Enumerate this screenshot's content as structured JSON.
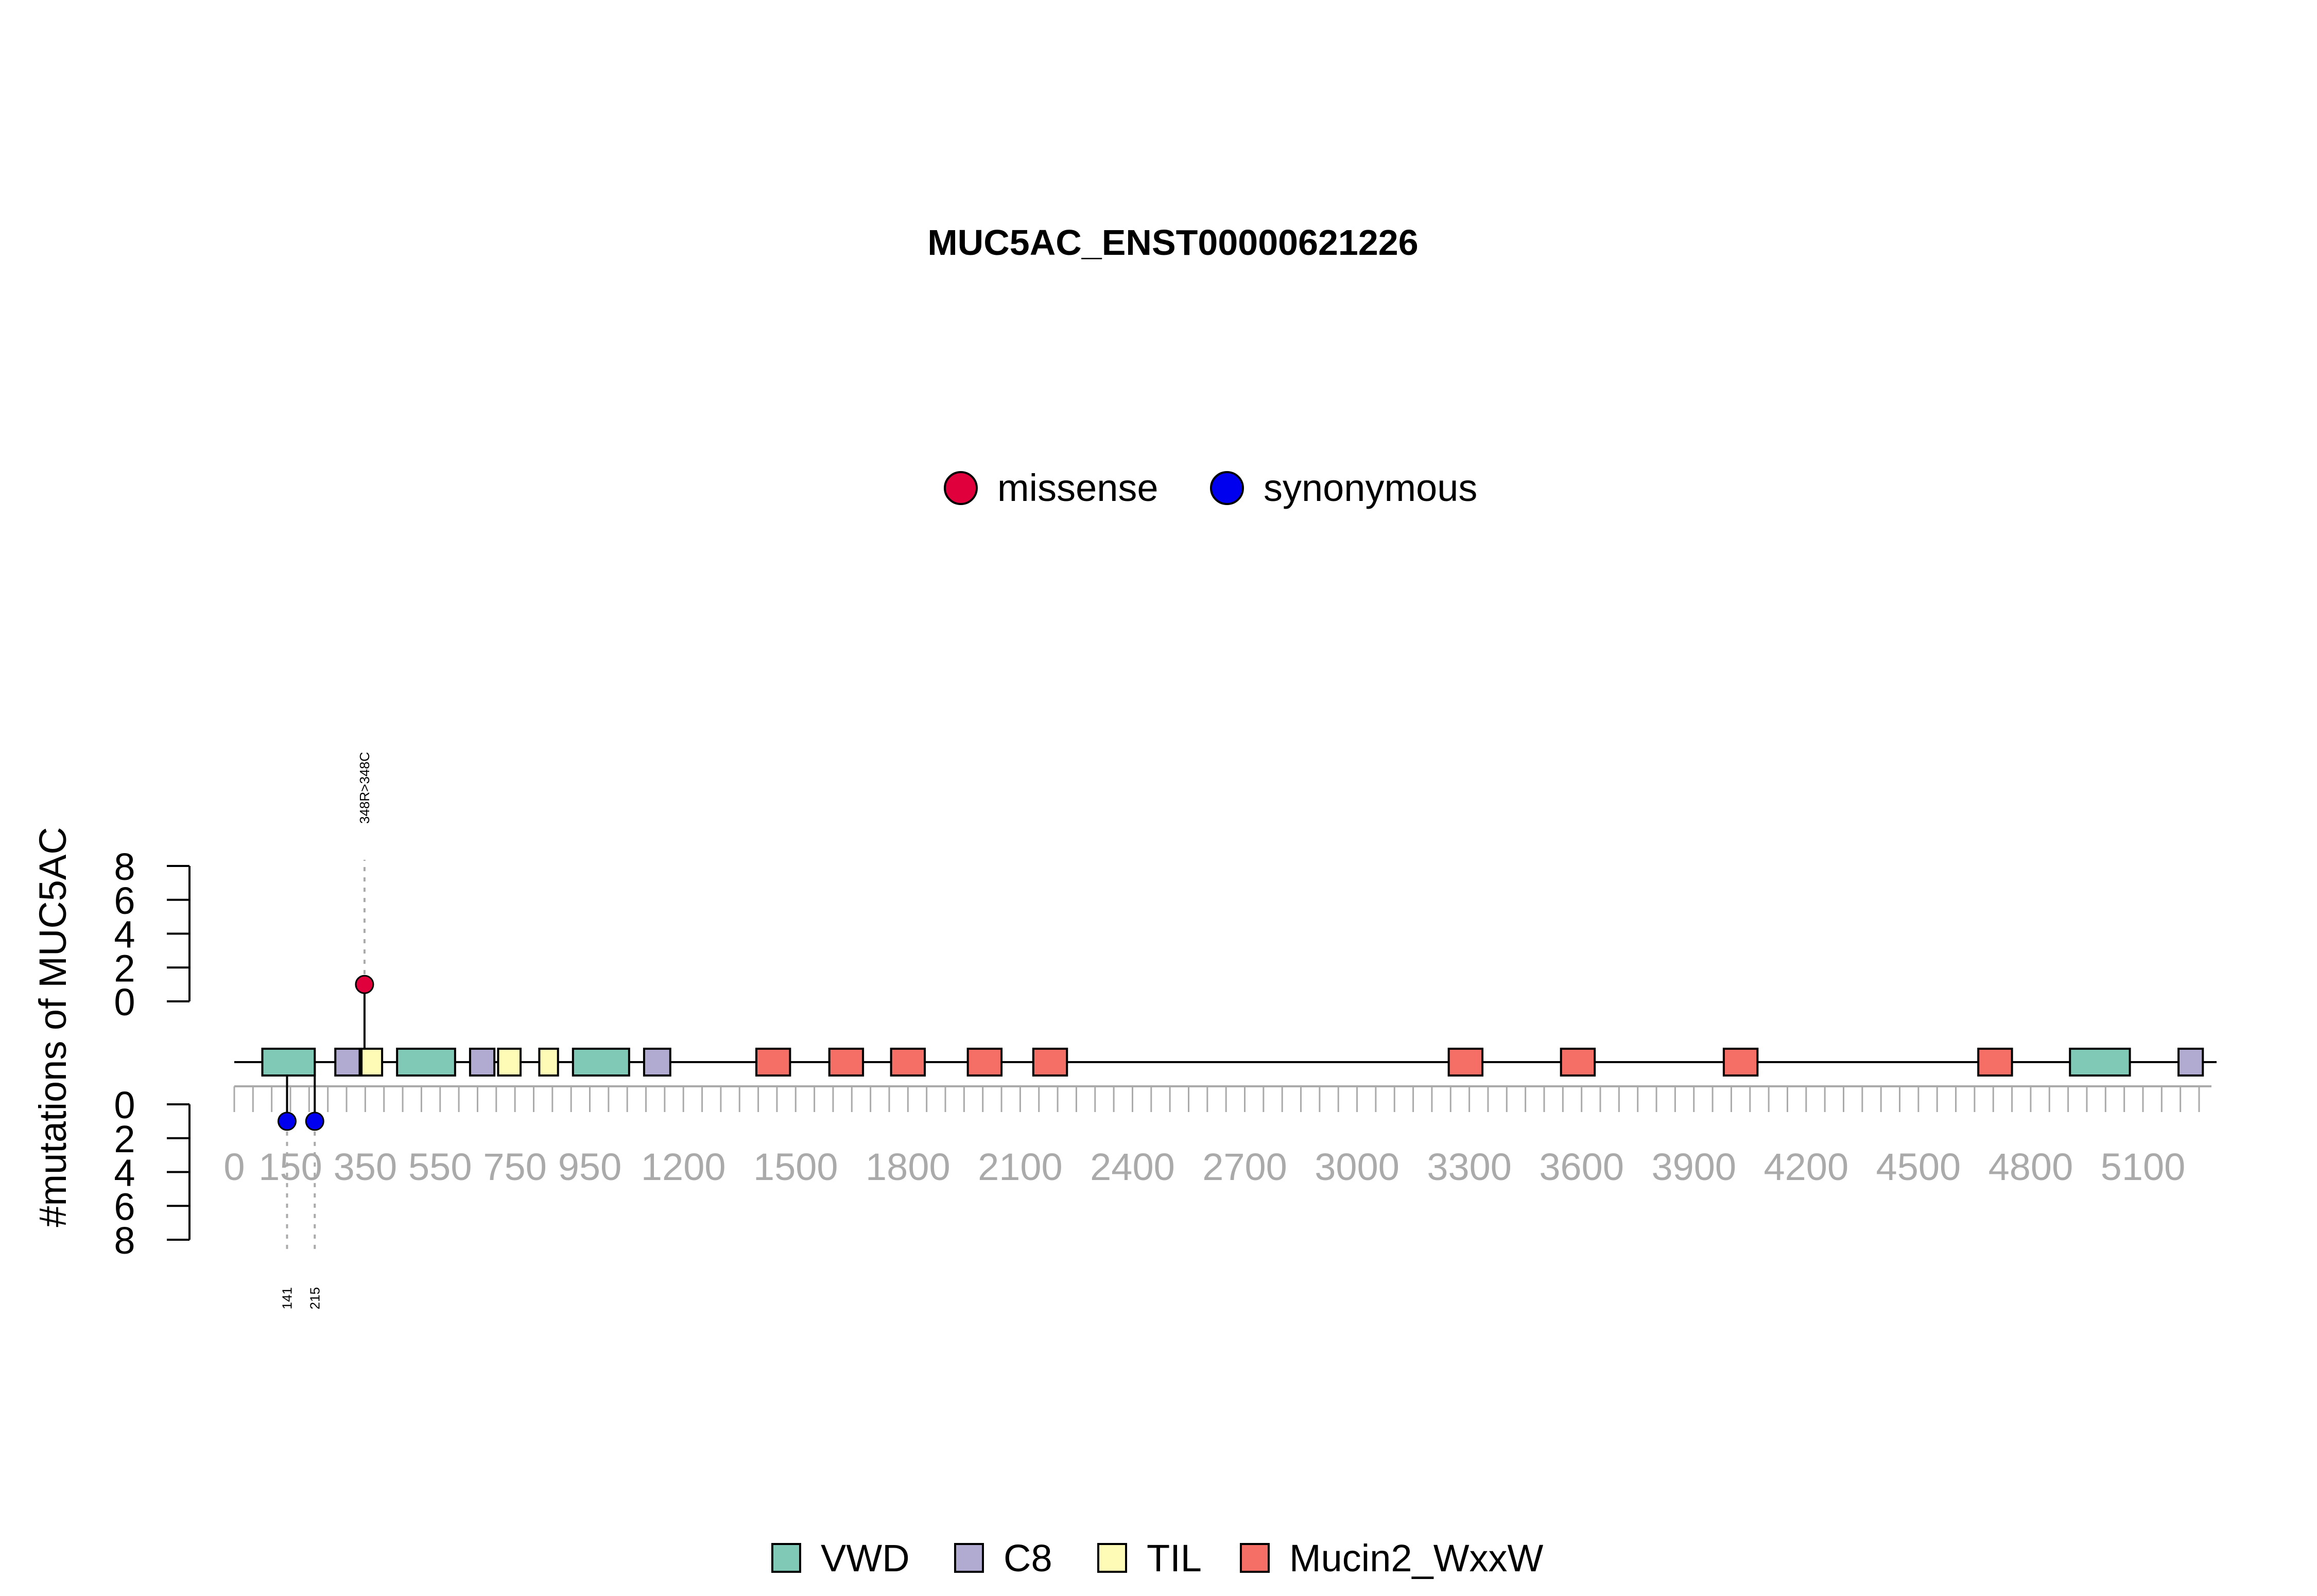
{
  "chart_data": {
    "type": "lollipop",
    "title": "MUC5AC_ENST00000621226",
    "ylabel": "#mutations of MUC5AC",
    "protein_length": 5283,
    "xlim": [
      0,
      5283
    ],
    "x_ticks": [
      0,
      150,
      350,
      550,
      750,
      950,
      1200,
      1500,
      1800,
      2100,
      2400,
      2700,
      3000,
      3300,
      3600,
      3900,
      4200,
      4500,
      4800,
      5100
    ],
    "x_tick_labels": [
      "0",
      "150",
      "350",
      "550",
      "750",
      "950",
      "1200",
      "1500",
      "1800",
      "2100",
      "2400",
      "2700",
      "3000",
      "3300",
      "3600",
      "3900",
      "4200",
      "4500",
      "4800",
      "5100"
    ],
    "y_upper": {
      "ticks": [
        0,
        2,
        4,
        6,
        8
      ],
      "tick_labels": [
        "0",
        "2",
        "4",
        "6",
        "8"
      ],
      "ylim": [
        0,
        8
      ]
    },
    "y_lower": {
      "ticks": [
        0,
        2,
        4,
        6,
        8
      ],
      "tick_labels": [
        "0",
        "2",
        "4",
        "6",
        "8"
      ],
      "ylim": [
        0,
        8
      ]
    },
    "mutation_legend": [
      {
        "name": "missense",
        "color": "#e0003c"
      },
      {
        "name": "synonymous",
        "color": "#0000ee"
      }
    ],
    "mutations": [
      {
        "position": 348,
        "count": 1,
        "class": "missense",
        "side": "upper",
        "label": "348R>348C",
        "color": "#e0003c"
      },
      {
        "position": 141,
        "count": 1,
        "class": "synonymous",
        "side": "lower",
        "label": "141",
        "color": "#0000ee"
      },
      {
        "position": 215,
        "count": 1,
        "class": "synonymous",
        "side": "lower",
        "label": "215",
        "color": "#0000ee"
      }
    ],
    "domain_legend": [
      {
        "name": "VWD",
        "color": "#7fc9b6"
      },
      {
        "name": "C8",
        "color": "#b1abd1"
      },
      {
        "name": "TIL",
        "color": "#fdfbb5"
      },
      {
        "name": "Mucin2_WxxW",
        "color": "#f56f66"
      }
    ],
    "domains": [
      {
        "name": "VWD",
        "start": 75,
        "end": 215
      },
      {
        "name": "C8",
        "start": 270,
        "end": 335
      },
      {
        "name": "TIL",
        "start": 340,
        "end": 395
      },
      {
        "name": "VWD",
        "start": 435,
        "end": 590
      },
      {
        "name": "C8",
        "start": 630,
        "end": 695
      },
      {
        "name": "TIL",
        "start": 705,
        "end": 765
      },
      {
        "name": "TIL",
        "start": 815,
        "end": 865
      },
      {
        "name": "VWD",
        "start": 905,
        "end": 1055
      },
      {
        "name": "C8",
        "start": 1095,
        "end": 1165
      },
      {
        "name": "Mucin2_WxxW",
        "start": 1395,
        "end": 1485
      },
      {
        "name": "Mucin2_WxxW",
        "start": 1590,
        "end": 1680
      },
      {
        "name": "Mucin2_WxxW",
        "start": 1755,
        "end": 1845
      },
      {
        "name": "Mucin2_WxxW",
        "start": 1960,
        "end": 2050
      },
      {
        "name": "Mucin2_WxxW",
        "start": 2135,
        "end": 2225
      },
      {
        "name": "Mucin2_WxxW",
        "start": 3245,
        "end": 3335
      },
      {
        "name": "Mucin2_WxxW",
        "start": 3545,
        "end": 3635
      },
      {
        "name": "Mucin2_WxxW",
        "start": 3980,
        "end": 4070
      },
      {
        "name": "Mucin2_WxxW",
        "start": 4660,
        "end": 4750
      },
      {
        "name": "VWD",
        "start": 4905,
        "end": 5065
      },
      {
        "name": "C8",
        "start": 5195,
        "end": 5260
      }
    ]
  }
}
